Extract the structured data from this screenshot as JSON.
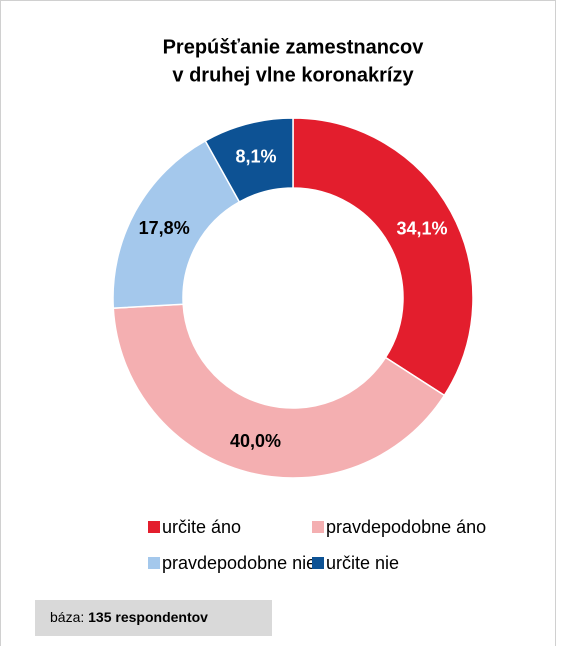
{
  "chart_data": {
    "type": "donut",
    "title": [
      "Prepúšťanie zamestnancov",
      "v druhej vlne koronakrízy"
    ],
    "categories": [
      "určite áno",
      "pravdepodobne áno",
      "pravdepodobne nie",
      "určite nie"
    ],
    "values": [
      34.1,
      40.0,
      17.8,
      8.1
    ],
    "value_labels": [
      "34,1%",
      "40,0%",
      "17,8%",
      "8,1%"
    ],
    "colors": [
      "#e31e2d",
      "#f4afb1",
      "#a4c8ec",
      "#0d5294"
    ],
    "footnote": {
      "label": "báza:",
      "text": "135 respondentov"
    }
  }
}
